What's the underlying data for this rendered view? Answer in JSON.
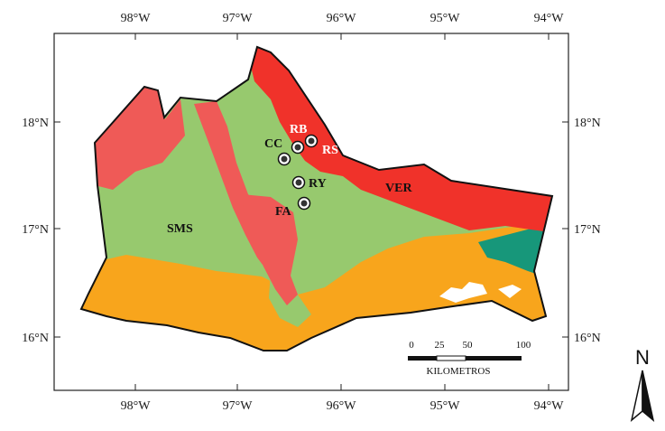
{
  "colors": {
    "green": "#97c96e",
    "red_dark": "#f0322a",
    "red_light": "#ef5a57",
    "orange": "#f8a51c",
    "teal": "#17977a",
    "marker_fill": "#333333"
  },
  "axes": {
    "top": [
      "98°W",
      "97°W",
      "96°W",
      "95°W",
      "94°W"
    ],
    "bottom": [
      "98°W",
      "97°W",
      "96°W",
      "95°W",
      "94°W"
    ],
    "left": [
      "18°N",
      "17°N",
      "16°N"
    ],
    "right": [
      "18°N",
      "17°N",
      "16°N"
    ]
  },
  "regions": [
    {
      "label": "SMS"
    },
    {
      "label": "VER"
    }
  ],
  "sites": [
    {
      "code": "RB",
      "color": "#ffffff"
    },
    {
      "code": "RS",
      "color": "#ffffff"
    },
    {
      "code": "CC",
      "color": "#111111"
    },
    {
      "code": "RY",
      "color": "#111111"
    },
    {
      "code": "FA",
      "color": "#111111"
    }
  ],
  "scale_bar": {
    "ticks": [
      "0",
      "25",
      "50",
      "100"
    ],
    "unit": "KILOMETROS"
  },
  "north_arrow": {
    "label": "N"
  }
}
